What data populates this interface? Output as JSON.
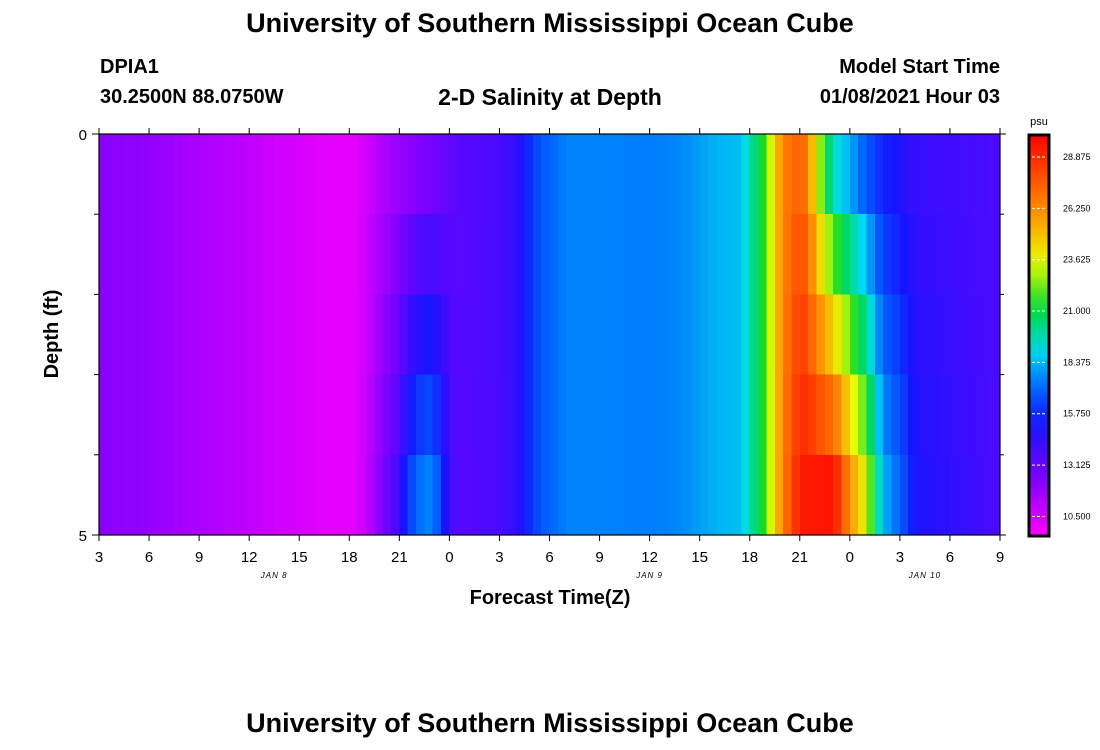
{
  "header": {
    "title": "University of Southern Mississippi Ocean Cube",
    "station_id": "DPIA1",
    "station_coords": "30.2500N 88.0750W",
    "plot_title": "2-D Salinity at Depth",
    "model_start_label": "Model Start Time",
    "model_start_value": "01/08/2021 Hour 03"
  },
  "footer": {
    "title": "University of Southern Mississippi Ocean Cube"
  },
  "chart_data": {
    "type": "heatmap",
    "title": "2-D Salinity at Depth",
    "xlabel": "Forecast Time(Z)",
    "ylabel": "Depth (ft)",
    "ylim": [
      0,
      5
    ],
    "y_ticks": [
      "0",
      "5"
    ],
    "y_minor_ticks": [
      1,
      2,
      3,
      4
    ],
    "x_hours_range": [
      0,
      54
    ],
    "x_tick_labels": [
      "3",
      "6",
      "9",
      "12",
      "15",
      "18",
      "21",
      "0",
      "3",
      "6",
      "9",
      "12",
      "15",
      "18",
      "21",
      "0",
      "3",
      "6",
      "9"
    ],
    "date_labels": [
      {
        "label": "JAN 8",
        "hour": 10.5
      },
      {
        "label": "JAN 9",
        "hour": 33
      },
      {
        "label": "JAN 10",
        "hour": 49.5
      }
    ],
    "colorbar": {
      "unit": "psu",
      "min": 9.5,
      "max": 30,
      "tick_values": [
        10.5,
        13.125,
        15.75,
        18.375,
        21,
        23.625,
        26.25,
        28.875
      ],
      "tick_labels": [
        "10.500",
        "13.125",
        "15.750",
        "18.375",
        "21.000",
        "23.625",
        "26.250",
        "28.875"
      ]
    },
    "depth_layers": [
      0,
      0.5,
      1.5,
      2.5,
      3.5,
      4.5
    ],
    "salinity_profile_surface": [
      [
        0,
        12.2
      ],
      [
        3,
        11.9
      ],
      [
        6,
        11.4
      ],
      [
        9,
        10.9
      ],
      [
        12,
        10.4
      ],
      [
        13.5,
        10.1
      ],
      [
        15,
        10.0
      ],
      [
        15.5,
        10.2
      ],
      [
        16.5,
        10.9
      ],
      [
        17.5,
        11.6
      ],
      [
        19.5,
        12.5
      ],
      [
        20.5,
        12.9
      ],
      [
        21.5,
        13.4
      ],
      [
        24,
        13.8
      ],
      [
        25,
        14.4
      ],
      [
        25.5,
        15.3
      ],
      [
        26,
        16.2
      ],
      [
        27,
        17.1
      ],
      [
        28,
        17.6
      ],
      [
        30,
        17.6
      ],
      [
        33,
        17.5
      ],
      [
        35,
        17.7
      ],
      [
        36,
        18.0
      ],
      [
        37,
        18.3
      ],
      [
        38.5,
        18.5
      ],
      [
        39.5,
        20.8
      ],
      [
        40,
        22.0
      ],
      [
        40.5,
        24.5
      ],
      [
        41,
        26.5
      ],
      [
        42,
        27.5
      ],
      [
        42.5,
        26.5
      ],
      [
        43,
        23.5
      ],
      [
        43.5,
        21.5
      ],
      [
        44,
        19.5
      ],
      [
        45,
        18.2
      ],
      [
        46,
        16.8
      ],
      [
        47,
        15.6
      ],
      [
        49,
        14.3
      ],
      [
        54,
        13.8
      ]
    ],
    "salinity_profile_bottom": [
      [
        0,
        12.2
      ],
      [
        3,
        11.9
      ],
      [
        6,
        11.4
      ],
      [
        9,
        10.9
      ],
      [
        12,
        10.4
      ],
      [
        13.5,
        10.1
      ],
      [
        15,
        10.0
      ],
      [
        15.5,
        10.2
      ],
      [
        16,
        10.9
      ],
      [
        16.5,
        11.6
      ],
      [
        17,
        12.6
      ],
      [
        17.5,
        13.2
      ],
      [
        18,
        14.2
      ],
      [
        18.5,
        16.0
      ],
      [
        19,
        17.0
      ],
      [
        19.5,
        17.6
      ],
      [
        20,
        17.6
      ],
      [
        20.5,
        16.2
      ],
      [
        21,
        14.0
      ],
      [
        21.5,
        13.5
      ],
      [
        24,
        13.8
      ],
      [
        25,
        14.4
      ],
      [
        25.5,
        15.3
      ],
      [
        26,
        16.2
      ],
      [
        27,
        17.1
      ],
      [
        28,
        17.6
      ],
      [
        30,
        17.6
      ],
      [
        33,
        17.5
      ],
      [
        35,
        17.7
      ],
      [
        36,
        18.0
      ],
      [
        37,
        18.3
      ],
      [
        38.5,
        18.5
      ],
      [
        39.5,
        20.8
      ],
      [
        40,
        22.0
      ],
      [
        40.5,
        24.5
      ],
      [
        41,
        26.5
      ],
      [
        42,
        29.3
      ],
      [
        44,
        29.5
      ],
      [
        44.5,
        28.0
      ],
      [
        45,
        26.0
      ],
      [
        46,
        23.5
      ],
      [
        46.5,
        20.5
      ],
      [
        47,
        18.4
      ],
      [
        48,
        17.0
      ],
      [
        49,
        15.0
      ],
      [
        54,
        13.8
      ]
    ]
  }
}
